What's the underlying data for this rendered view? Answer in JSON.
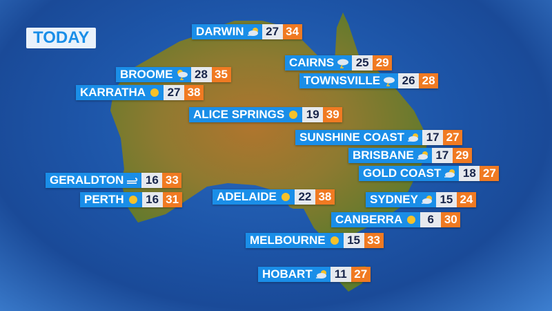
{
  "title": "TODAY",
  "colors": {
    "name_bg": "#1a8ee8",
    "min_bg": "#e6e9ee",
    "max_bg": "#f07a22"
  },
  "cities": [
    {
      "name": "DARWIN",
      "icon": "partly-cloudy-windy-icon",
      "min": "27",
      "max": "34"
    },
    {
      "name": "BROOME",
      "icon": "sun-storm-icon",
      "min": "28",
      "max": "35"
    },
    {
      "name": "KARRATHA",
      "icon": "sunny-icon",
      "min": "27",
      "max": "38"
    },
    {
      "name": "CAIRNS",
      "icon": "storm-icon",
      "min": "25",
      "max": "29"
    },
    {
      "name": "TOWNSVILLE",
      "icon": "storm-icon",
      "min": "26",
      "max": "28"
    },
    {
      "name": "ALICE SPRINGS",
      "icon": "sunny-icon",
      "min": "19",
      "max": "39"
    },
    {
      "name": "SUNSHINE COAST",
      "icon": "partly-cloudy-windy-icon",
      "min": "17",
      "max": "27"
    },
    {
      "name": "BRISBANE",
      "icon": "partly-cloudy-windy-icon",
      "min": "17",
      "max": "29"
    },
    {
      "name": "GOLD COAST",
      "icon": "partly-cloudy-windy-icon",
      "min": "18",
      "max": "27"
    },
    {
      "name": "GERALDTON",
      "icon": "windy-icon",
      "min": "16",
      "max": "33"
    },
    {
      "name": "PERTH",
      "icon": "sunny-icon",
      "min": "16",
      "max": "31"
    },
    {
      "name": "ADELAIDE",
      "icon": "sunny-icon",
      "min": "22",
      "max": "38"
    },
    {
      "name": "SYDNEY",
      "icon": "partly-cloudy-windy-icon",
      "min": "15",
      "max": "24"
    },
    {
      "name": "CANBERRA",
      "icon": "sunny-icon",
      "min": "6",
      "max": "30"
    },
    {
      "name": "MELBOURNE",
      "icon": "sunny-icon",
      "min": "15",
      "max": "33"
    },
    {
      "name": "HOBART",
      "icon": "partly-cloudy-windy-icon",
      "min": "11",
      "max": "27"
    }
  ]
}
